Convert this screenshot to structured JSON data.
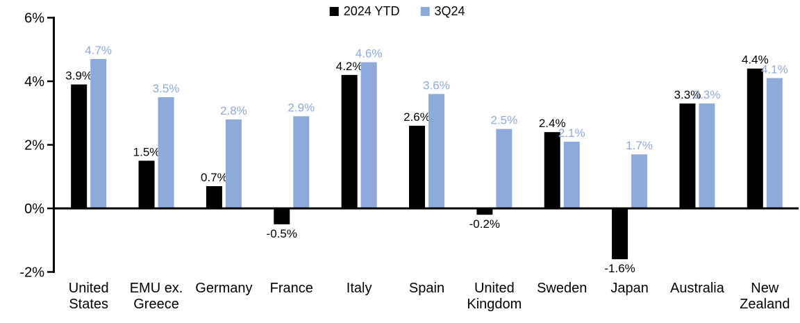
{
  "chart_data": {
    "type": "bar",
    "title": "",
    "xlabel": "",
    "ylabel": "",
    "categories": [
      "United States",
      "EMU ex. Greece",
      "Germany",
      "France",
      "Italy",
      "Spain",
      "United Kingdom",
      "Sweden",
      "Japan",
      "Australia",
      "New Zealand"
    ],
    "series": [
      {
        "name": "2024 YTD",
        "color": "#000000",
        "label_color": "#000000",
        "values": [
          3.9,
          1.5,
          0.7,
          -0.5,
          4.2,
          2.6,
          -0.2,
          2.4,
          -1.6,
          3.3,
          4.4
        ]
      },
      {
        "name": "3Q24",
        "color": "#8EAADB",
        "label_color": "#8EAADB",
        "values": [
          4.7,
          3.5,
          2.8,
          2.9,
          4.6,
          3.6,
          2.5,
          2.1,
          1.7,
          3.3,
          4.1
        ]
      }
    ],
    "ylim": [
      -2,
      6
    ],
    "yticks": [
      6,
      4,
      2,
      0,
      -2
    ],
    "tick_suffix": "%",
    "label_decimals": 1,
    "label_suffix": "%",
    "grid": false,
    "legend_position": "top-center",
    "axis_color": "#000000",
    "background": "#ffffff"
  }
}
